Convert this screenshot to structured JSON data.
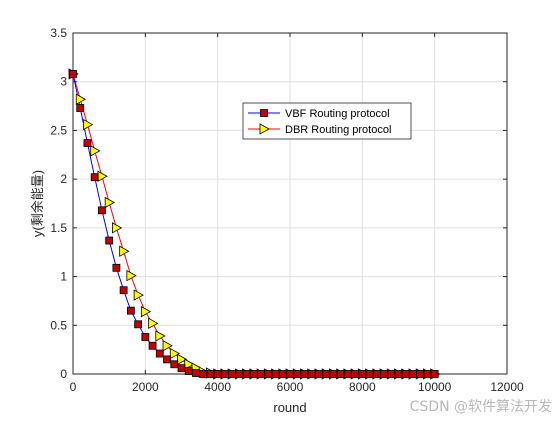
{
  "chart_data": {
    "type": "line",
    "xlabel": "round",
    "ylabel": "y(剩余能量)",
    "xlim": [
      0,
      12000
    ],
    "ylim": [
      0,
      3.5
    ],
    "x_ticks": [
      0,
      2000,
      4000,
      6000,
      8000,
      10000,
      12000
    ],
    "y_ticks": [
      0,
      0.5,
      1,
      1.5,
      2,
      2.5,
      3,
      3.5
    ],
    "x_tick_labels": [
      "0",
      "2000",
      "4000",
      "6000",
      "8000",
      "10000",
      "12000"
    ],
    "y_tick_labels": [
      "0",
      "0.5",
      "1",
      "1.5",
      "2",
      "2.5",
      "3",
      "3.5"
    ],
    "grid": true,
    "legend_position": "upper-center-right",
    "series": [
      {
        "name": "VBF Routing protocol",
        "color": "#0000ff",
        "marker": "square",
        "marker_color": "#c00000",
        "x": [
          0,
          200,
          400,
          600,
          800,
          1000,
          1200,
          1400,
          1600,
          1800,
          2000,
          2200,
          2400,
          2600,
          2800,
          3000,
          3200,
          3400,
          3600,
          3800,
          4000,
          4200,
          4400,
          4600,
          4800,
          5000,
          5200,
          5400,
          5600,
          5800,
          6000,
          6200,
          6400,
          6600,
          6800,
          7000,
          7200,
          7400,
          7600,
          7800,
          8000,
          8200,
          8400,
          8600,
          8800,
          9000,
          9200,
          9400,
          9600,
          9800,
          10000
        ],
        "y": [
          3.08,
          2.73,
          2.37,
          2.02,
          1.68,
          1.37,
          1.09,
          0.86,
          0.65,
          0.51,
          0.38,
          0.29,
          0.21,
          0.15,
          0.1,
          0.06,
          0.03,
          0.01,
          0,
          0,
          0,
          0,
          0,
          0,
          0,
          0,
          0,
          0,
          0,
          0,
          0,
          0,
          0,
          0,
          0,
          0,
          0,
          0,
          0,
          0,
          0,
          0,
          0,
          0,
          0,
          0,
          0,
          0,
          0,
          0,
          0
        ]
      },
      {
        "name": "DBR Routing protocol",
        "color": "#ff0000",
        "marker": "triangle-right",
        "marker_color": "#ffff00",
        "x": [
          0,
          200,
          400,
          600,
          800,
          1000,
          1200,
          1400,
          1600,
          1800,
          2000,
          2200,
          2400,
          2600,
          2800,
          3000,
          3200,
          3400,
          3600,
          3800,
          4000,
          4200,
          4400,
          4600,
          4800,
          5000,
          5200,
          5400,
          5600,
          5800,
          6000,
          6200,
          6400,
          6600,
          6800,
          7000,
          7200,
          7400,
          7600,
          7800,
          8000,
          8200,
          8400,
          8600,
          8800,
          9000,
          9200,
          9400,
          9600,
          9800,
          10000
        ],
        "y": [
          3.08,
          2.82,
          2.56,
          2.29,
          2.03,
          1.76,
          1.5,
          1.26,
          1.01,
          0.81,
          0.64,
          0.52,
          0.39,
          0.29,
          0.21,
          0.15,
          0.1,
          0.06,
          0.02,
          0.01,
          0,
          0,
          0,
          0,
          0,
          0,
          0,
          0,
          0,
          0,
          0,
          0,
          0,
          0,
          0,
          0,
          0,
          0,
          0,
          0,
          0,
          0,
          0,
          0,
          0,
          0,
          0,
          0,
          0,
          0,
          0
        ]
      }
    ]
  },
  "watermark": "CSDN @软件算法开发"
}
